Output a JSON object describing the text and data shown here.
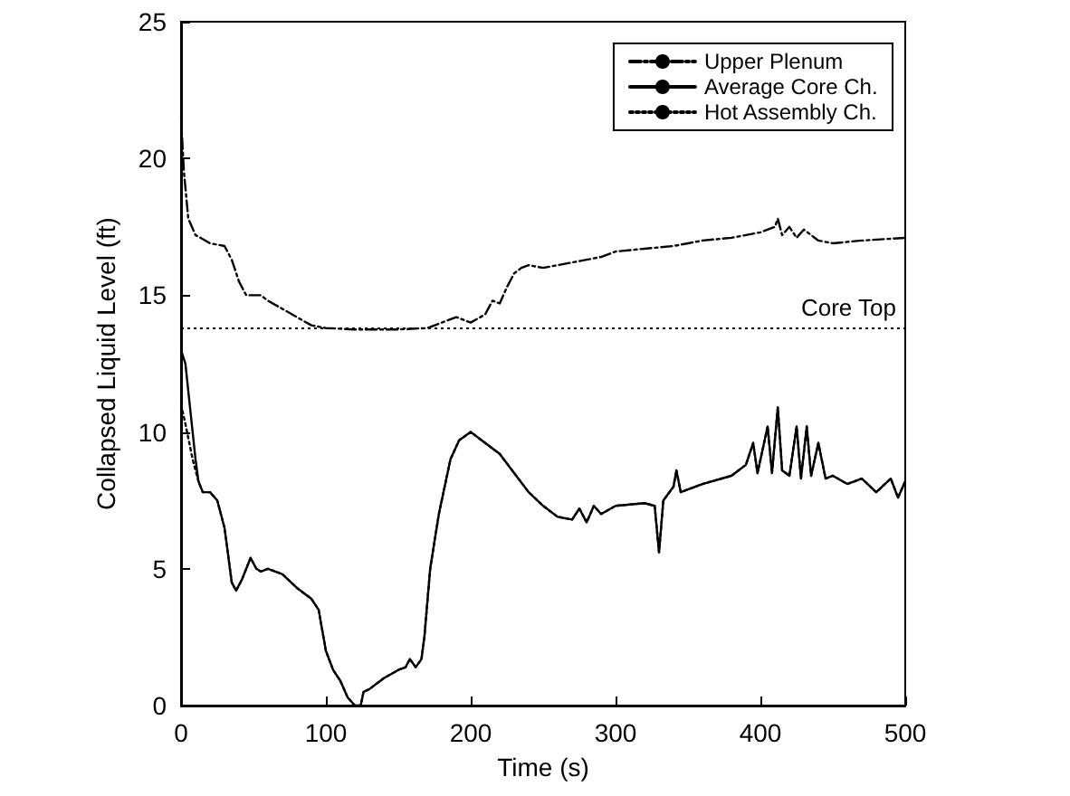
{
  "chart_data": {
    "type": "line",
    "xlabel": "Time (s)",
    "ylabel": "Collapsed Liquid Level (ft)",
    "xlim": [
      0,
      500
    ],
    "xticks": [
      0,
      100,
      200,
      300,
      400,
      500
    ],
    "ylim": [
      0,
      25
    ],
    "yticks": [
      0,
      5,
      10,
      15,
      20,
      25
    ],
    "grid": false,
    "legend": "top right",
    "marker": "none",
    "series": [
      {
        "name": "Upper Plenum",
        "color": "#000000",
        "line_style": "dashdot",
        "x": [
          0,
          2,
          5,
          10,
          20,
          30,
          35,
          40,
          45,
          55,
          60,
          70,
          80,
          90,
          100,
          120,
          150,
          170,
          180,
          190,
          200,
          210,
          215,
          220,
          225,
          230,
          235,
          240,
          250,
          260,
          270,
          280,
          290,
          300,
          320,
          340,
          360,
          380,
          400,
          410,
          412,
          415,
          420,
          425,
          430,
          440,
          450,
          470,
          500
        ],
        "values": [
          21.5,
          19.5,
          17.8,
          17.2,
          16.9,
          16.8,
          16.3,
          15.5,
          15.0,
          15.0,
          14.8,
          14.5,
          14.2,
          13.9,
          13.8,
          13.75,
          13.75,
          13.8,
          14.0,
          14.2,
          14.0,
          14.3,
          14.8,
          14.7,
          15.3,
          15.8,
          16.0,
          16.1,
          16.0,
          16.1,
          16.2,
          16.3,
          16.4,
          16.6,
          16.7,
          16.8,
          17.0,
          17.1,
          17.3,
          17.5,
          17.8,
          17.2,
          17.5,
          17.1,
          17.4,
          17.0,
          16.9,
          17.0,
          17.1
        ]
      },
      {
        "name": "Average Core Ch.",
        "color": "#000000",
        "line_style": "solid",
        "x": [
          0,
          3,
          6,
          10,
          12,
          15,
          20,
          25,
          30,
          35,
          38,
          42,
          48,
          52,
          55,
          60,
          65,
          70,
          80,
          90,
          95,
          100,
          105,
          110,
          115,
          120,
          124,
          126,
          130,
          140,
          150,
          155,
          158,
          162,
          166,
          168,
          172,
          175,
          178,
          182,
          186,
          192,
          200,
          210,
          220,
          230,
          240,
          250,
          260,
          270,
          275,
          280,
          285,
          290,
          300,
          320,
          327,
          330,
          333,
          340,
          342,
          345,
          360,
          380,
          390,
          395,
          398,
          405,
          408,
          412,
          415,
          420,
          425,
          428,
          432,
          435,
          440,
          445,
          450,
          460,
          470,
          480,
          490,
          495,
          500
        ],
        "values": [
          13.0,
          12.5,
          11.0,
          9.0,
          8.2,
          7.8,
          7.8,
          7.5,
          6.5,
          4.5,
          4.2,
          4.6,
          5.4,
          5.0,
          4.9,
          5.0,
          4.9,
          4.8,
          4.3,
          3.9,
          3.5,
          2.0,
          1.3,
          0.9,
          0.3,
          0.0,
          0.0,
          0.5,
          0.6,
          1.0,
          1.3,
          1.4,
          1.7,
          1.4,
          1.7,
          2.5,
          5.0,
          6.0,
          7.0,
          8.0,
          9.0,
          9.7,
          10.0,
          9.6,
          9.2,
          8.5,
          7.8,
          7.3,
          6.9,
          6.8,
          7.2,
          6.7,
          7.3,
          7.0,
          7.3,
          7.4,
          7.3,
          5.6,
          7.5,
          8.0,
          8.6,
          7.8,
          8.1,
          8.4,
          8.8,
          9.6,
          8.5,
          10.2,
          8.5,
          10.9,
          8.6,
          8.4,
          10.2,
          8.3,
          10.2,
          8.4,
          9.6,
          8.3,
          8.4,
          8.1,
          8.3,
          7.8,
          8.3,
          7.6,
          8.2
        ]
      },
      {
        "name": "Hot Assembly Ch.",
        "color": "#000000",
        "line_style": "dotted",
        "x": [
          0,
          3,
          8,
          12,
          15,
          20,
          25,
          30,
          35,
          38,
          42,
          48,
          52,
          55,
          60,
          65,
          70,
          80,
          90,
          95,
          100,
          105,
          110,
          115,
          120,
          124,
          126,
          130,
          140,
          150,
          155,
          158,
          162,
          166,
          168,
          172,
          175,
          178,
          182,
          186,
          192,
          200,
          210,
          220,
          230,
          240,
          250,
          260,
          270,
          275,
          280,
          285,
          290,
          300,
          320,
          327,
          330,
          333,
          340,
          342,
          345,
          360,
          380,
          390,
          395,
          398,
          405,
          408,
          412,
          415,
          420,
          425,
          428,
          432,
          435,
          440,
          445,
          450,
          460,
          470,
          480,
          490,
          495,
          500
        ],
        "values": [
          11.0,
          10.3,
          9.0,
          8.2,
          7.8,
          7.8,
          7.5,
          6.5,
          4.5,
          4.2,
          4.6,
          5.4,
          5.0,
          4.9,
          5.0,
          4.9,
          4.8,
          4.3,
          3.9,
          3.5,
          2.0,
          1.3,
          0.9,
          0.3,
          0.0,
          0.0,
          0.5,
          0.6,
          1.0,
          1.3,
          1.4,
          1.7,
          1.4,
          1.7,
          2.5,
          5.0,
          6.0,
          7.0,
          8.0,
          9.0,
          9.7,
          10.0,
          9.6,
          9.2,
          8.5,
          7.8,
          7.3,
          6.9,
          6.8,
          7.2,
          6.7,
          7.3,
          7.0,
          7.3,
          7.4,
          7.3,
          5.6,
          7.5,
          8.0,
          8.6,
          7.8,
          8.1,
          8.4,
          8.8,
          9.6,
          8.5,
          10.2,
          8.5,
          10.9,
          8.6,
          8.4,
          10.2,
          8.3,
          10.2,
          8.4,
          9.6,
          8.3,
          8.4,
          8.1,
          8.3,
          7.8,
          8.3,
          7.6,
          8.2
        ]
      }
    ],
    "ref_lines": [
      {
        "axis": "y",
        "value": 13.8,
        "label": "Core Top",
        "color": "#000000",
        "line_style": "dotted"
      }
    ]
  }
}
